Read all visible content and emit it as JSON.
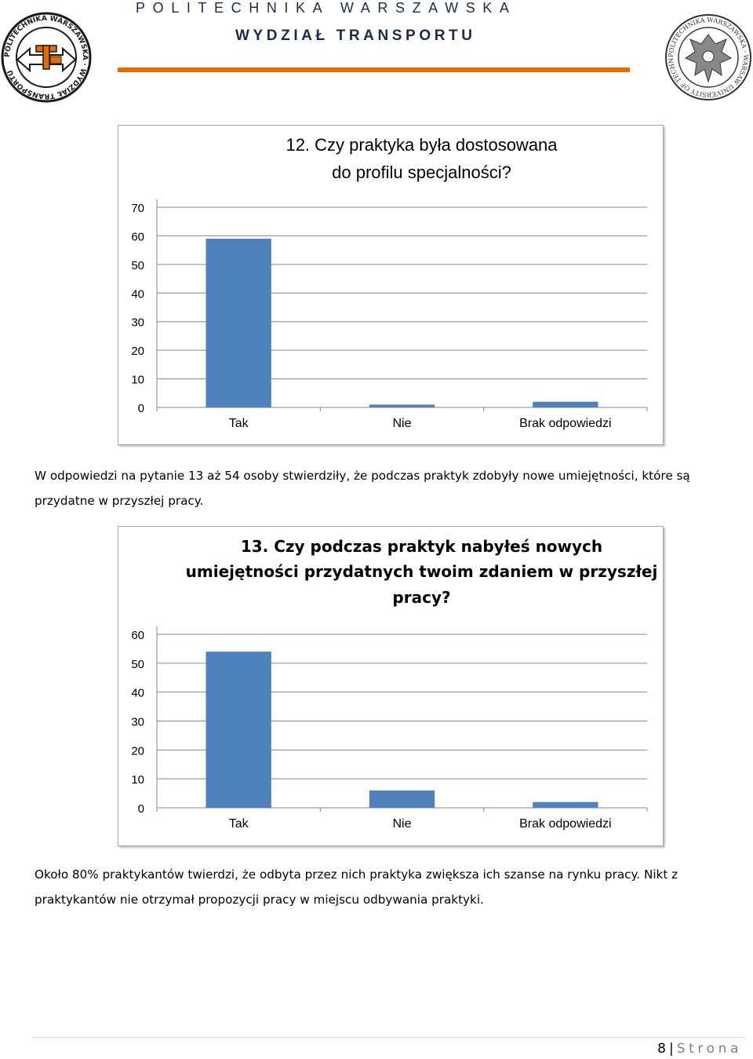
{
  "header": {
    "institution": "POLITECHNIKA WARSZAWSKA",
    "faculty": "WYDZIAŁ TRANSPORTU",
    "colors": {
      "rule": "#e36c0a",
      "text": "#1c2a4a"
    }
  },
  "logos": {
    "left": {
      "text": "POLITECHNIKA WARSZAWSKA · WYDZIAŁ TRANSPORTU",
      "icon": "faculty-seal-icon"
    },
    "right": {
      "text": "POLITECHNIKA WARSZAWSKA · WARSAW UNIVERSITY OF TECHNOLOGY",
      "icon": "university-eagle-seal-icon"
    }
  },
  "chart_data": [
    {
      "type": "bar",
      "title": "12. Czy praktyka była dostosowana do profilu specjalności?",
      "categories": [
        "Tak",
        "Nie",
        "Brak odpowiedzi"
      ],
      "values": [
        59,
        1,
        2
      ],
      "ylim": [
        0,
        70
      ],
      "yticks": [
        0,
        10,
        20,
        30,
        40,
        50,
        60,
        70
      ],
      "grid": true,
      "bar_color": "#4f81bd"
    },
    {
      "type": "bar",
      "title": "13. Czy podczas praktyk nabyłeś nowych umiejętności przydatnych twoim zdaniem w przyszłej pracy?",
      "categories": [
        "Tak",
        "Nie",
        "Brak odpowiedzi"
      ],
      "values": [
        54,
        6,
        2
      ],
      "ylim": [
        0,
        60
      ],
      "yticks": [
        0,
        10,
        20,
        30,
        40,
        50,
        60
      ],
      "grid": true,
      "bar_color": "#4f81bd"
    }
  ],
  "paragraphs": {
    "p1": "W odpowiedzi na pytanie 13 aż 54 osoby stwierdziły, że podczas praktyk zdobyły nowe umiejętności, które są przydatne w przyszłej pracy.",
    "p2": "Około 80% praktykantów twierdzi, że odbyta przez nich praktyka zwiększa ich szanse na rynku pracy. Nikt z praktykantów nie otrzymał propozycji pracy w miejscu odbywania praktyki."
  },
  "footer": {
    "page_number": "8",
    "separator": "|",
    "word": "Strona"
  }
}
